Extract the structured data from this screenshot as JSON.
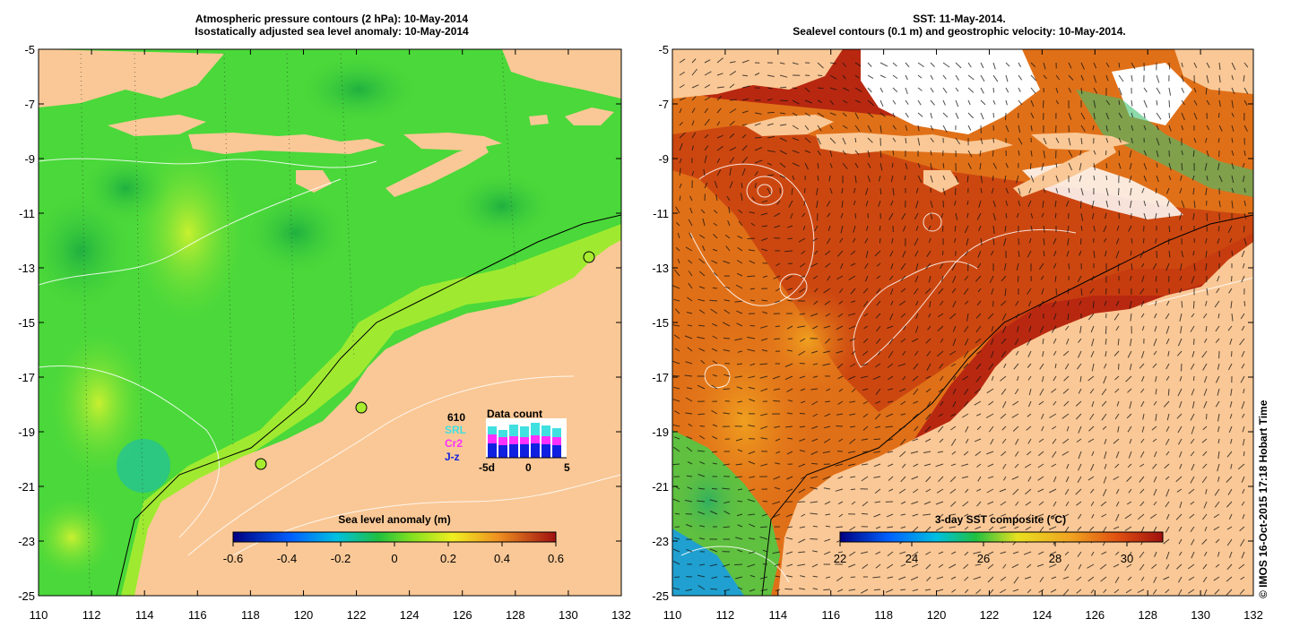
{
  "left_panel": {
    "title_line1": "Atmospheric pressure contours (2 hPa): 10-May-2014",
    "title_line2": "Isostatically adjusted sea level anomaly: 10-May-2014",
    "colorbar": {
      "label": "Sea level anomaly (m)",
      "ticks": [
        "-0.6",
        "-0.4",
        "-0.2",
        "0",
        "0.2",
        "0.4",
        "0.6"
      ],
      "range": [
        -0.6,
        0.6
      ]
    },
    "data_count": {
      "title": "Data count",
      "total": "610",
      "legend": [
        "SRL",
        "Cr2",
        "J-z"
      ],
      "legend_colors": [
        "#40e0e0",
        "#ff30ff",
        "#1020e0"
      ],
      "axis_labels": [
        "-5d",
        "0",
        "5"
      ]
    }
  },
  "right_panel": {
    "title_line1": "SST: 11-May-2014.",
    "title_line2": "Sealevel contours (0.1 m) and geostrophic velocity: 10-May-2014.",
    "colorbar": {
      "label": "3-day SST composite (°C)",
      "ticks": [
        "22",
        "24",
        "26",
        "28",
        "30"
      ],
      "range": [
        22,
        31
      ]
    }
  },
  "axes": {
    "lon_ticks": [
      "110",
      "112",
      "114",
      "116",
      "118",
      "120",
      "122",
      "124",
      "126",
      "128",
      "130",
      "132"
    ],
    "lat_ticks": [
      "-5",
      "-7",
      "-9",
      "-11",
      "-13",
      "-15",
      "-17",
      "-19",
      "-21",
      "-23",
      "-25"
    ],
    "lon_range": [
      110,
      132
    ],
    "lat_range": [
      -25,
      -5
    ]
  },
  "credit": "© IMOS 16-Oct-2015 17:18 Hobart Time",
  "colors": {
    "land": "#fac896",
    "ocean_slа": "#4ad83a",
    "sst_warm": "#c83c10",
    "sst_mid": "#e8a020"
  }
}
